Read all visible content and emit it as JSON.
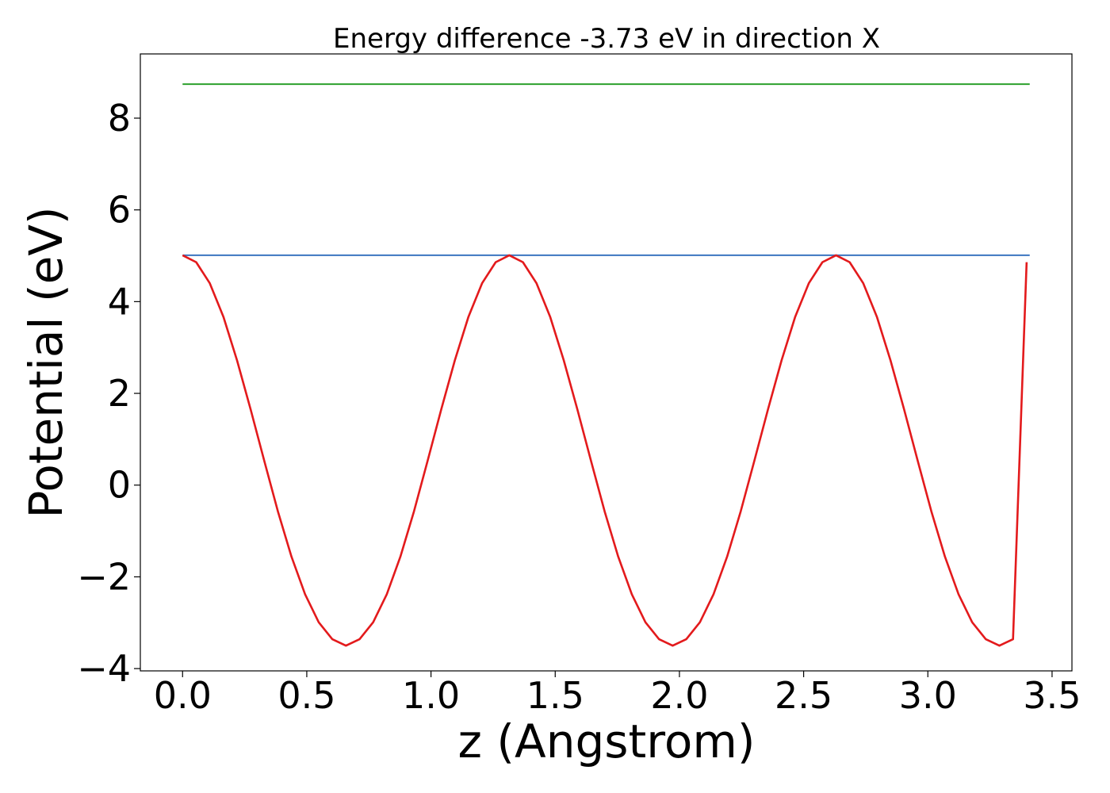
{
  "chart_data": {
    "type": "line",
    "title": "Energy difference -3.73 eV in direction X",
    "xlabel": "z (Angstrom)",
    "ylabel": "Potential (eV)",
    "xlim": [
      -0.17,
      3.58
    ],
    "ylim": [
      -4.05,
      9.4
    ],
    "xticks": [
      0.0,
      0.5,
      1.0,
      1.5,
      2.0,
      2.5,
      3.0,
      3.5
    ],
    "xtick_labels": [
      "0.0",
      "0.5",
      "1.0",
      "1.5",
      "2.0",
      "2.5",
      "3.0",
      "3.5"
    ],
    "yticks": [
      -4,
      -2,
      0,
      2,
      4,
      6,
      8
    ],
    "ytick_labels": [
      "−4",
      "−2",
      "0",
      "2",
      "4",
      "6",
      "8"
    ],
    "grid": false,
    "series": [
      {
        "color": "#2ca02c",
        "x": [
          0.0,
          3.41
        ],
        "y": [
          8.74,
          8.74
        ]
      },
      {
        "color": "#3b75c0",
        "x": [
          0.0,
          3.41
        ],
        "y": [
          5.01,
          5.01
        ]
      },
      {
        "color": "#e31a1c",
        "x": [
          0.0,
          0.0548,
          0.1096,
          0.1644,
          0.2192,
          0.274,
          0.3288,
          0.3836,
          0.4384,
          0.4932,
          0.548,
          0.6028,
          0.6576,
          0.7124,
          0.7672,
          0.822,
          0.8768,
          0.9316,
          0.9864,
          1.0412,
          1.096,
          1.1508,
          1.2056,
          1.2604,
          1.3152,
          1.37,
          1.4248,
          1.4796,
          1.5344,
          1.5892,
          1.644,
          1.6988,
          1.7536,
          1.8084,
          1.8632,
          1.918,
          1.9728,
          2.0276,
          2.0824,
          2.1372,
          2.192,
          2.2468,
          2.3016,
          2.3564,
          2.4112,
          2.466,
          2.5208,
          2.5756,
          2.6304,
          2.6852,
          2.74,
          2.7948,
          2.8496,
          2.9044,
          2.9592,
          3.014,
          3.0688,
          3.1236,
          3.1784,
          3.2332,
          3.288,
          3.3428,
          3.3976
        ],
        "y": [
          5.01,
          4.86,
          4.4,
          3.67,
          2.72,
          1.65,
          0.53,
          -0.57,
          -1.56,
          -2.38,
          -2.99,
          -3.36,
          -3.5,
          -3.36,
          -2.99,
          -2.38,
          -1.56,
          -0.57,
          0.53,
          1.65,
          2.72,
          3.67,
          4.4,
          4.86,
          5.01,
          4.86,
          4.4,
          3.67,
          2.72,
          1.65,
          0.53,
          -0.57,
          -1.56,
          -2.38,
          -2.99,
          -3.36,
          -3.5,
          -3.36,
          -2.99,
          -2.38,
          -1.56,
          -0.57,
          0.53,
          1.65,
          2.72,
          3.67,
          4.4,
          4.86,
          5.01,
          4.86,
          4.4,
          3.67,
          2.72,
          1.65,
          0.53,
          -0.57,
          -1.56,
          -2.38,
          -2.99,
          -3.36,
          -3.5,
          -3.36,
          4.86
        ]
      }
    ]
  }
}
